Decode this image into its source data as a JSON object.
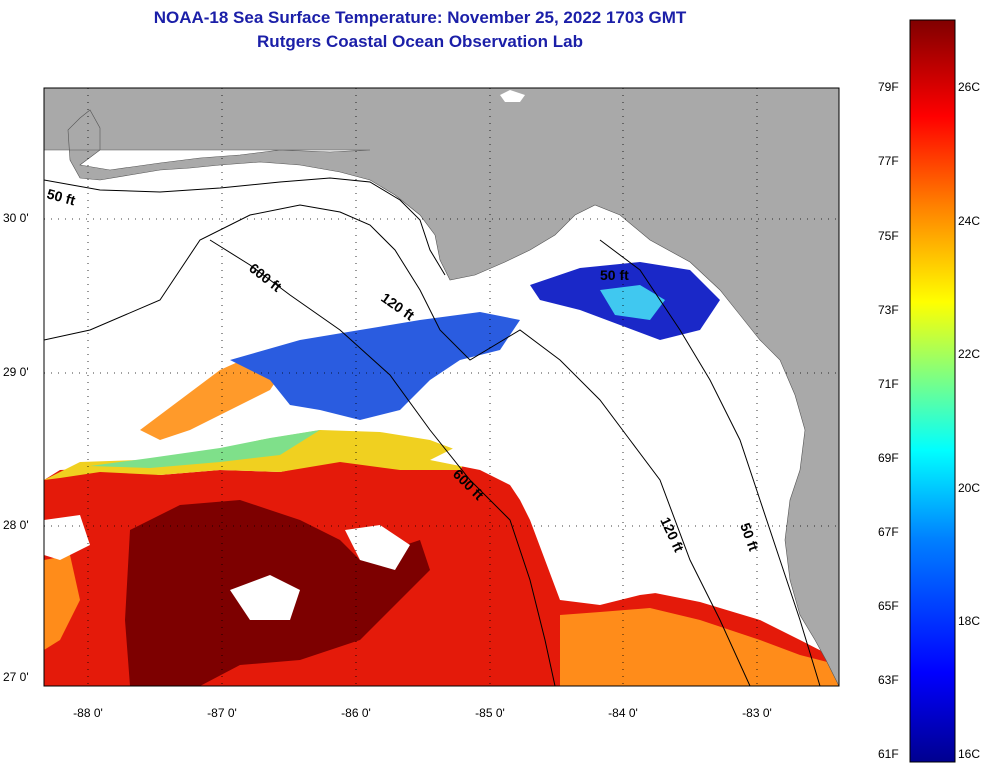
{
  "title": {
    "line1": "NOAA-18 Sea Surface Temperature:  November 25, 2022 1703 GMT",
    "line2": "Rutgers Coastal Ocean Observation Lab"
  },
  "map": {
    "lat_labels": [
      "30 0'",
      "29 0'",
      "28 0'",
      "27 0'"
    ],
    "lon_labels": [
      "-88 0'",
      "-87 0'",
      "-86 0'",
      "-85 0'",
      "-84 0'",
      "-83 0'"
    ],
    "contour_labels": [
      "50 ft",
      "600 ft",
      "120 ft",
      "50 ft",
      "600 ft",
      "120 ft",
      "50 ft"
    ],
    "colors": {
      "land": "#a9a9a9",
      "cloud": "#ffffff",
      "hot": "#7d0000",
      "warm": "#e41a0a",
      "mild": "#ff8c1a",
      "cool": "#2060e0",
      "cold": "#1a28c8"
    }
  },
  "colorbar": {
    "fahrenheit": [
      "79F",
      "77F",
      "75F",
      "73F",
      "71F",
      "69F",
      "67F",
      "65F",
      "63F",
      "61F"
    ],
    "celsius": [
      "26C",
      "24C",
      "22C",
      "20C",
      "18C",
      "16C"
    ],
    "stops": [
      "#00008f",
      "#0000ff",
      "#0080ff",
      "#00ffff",
      "#80ff80",
      "#ffff00",
      "#ff8000",
      "#ff0000",
      "#800000"
    ]
  }
}
